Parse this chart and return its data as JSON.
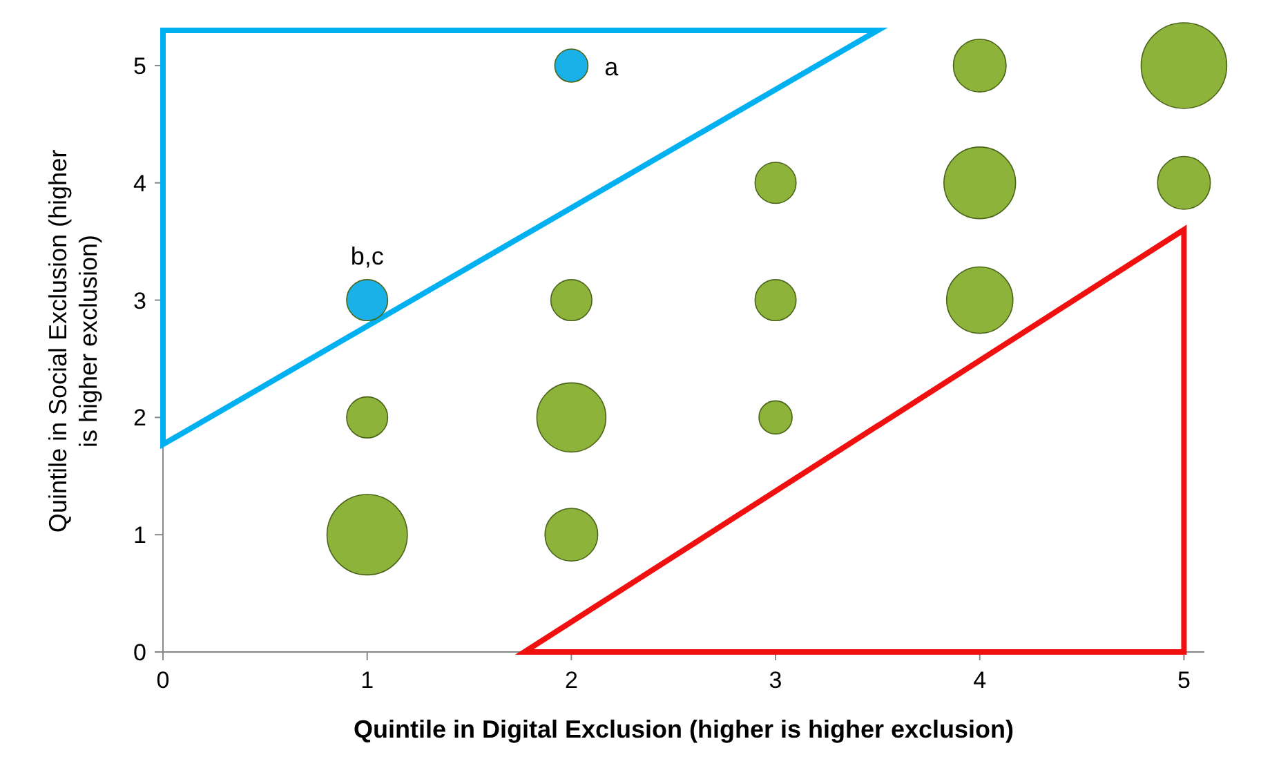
{
  "chart_data": {
    "type": "bubble",
    "xlabel": "Quintile in Digital Exclusion (higher is higher exclusion)",
    "ylabel": "Quintile in Social Exclusion (higher is higher exclusion)",
    "xlim": [
      0,
      5.1
    ],
    "ylim": [
      0,
      5.3
    ],
    "xticks": [
      0,
      1,
      2,
      3,
      4,
      5
    ],
    "yticks": [
      0,
      1,
      2,
      3,
      4,
      5
    ],
    "grid": false,
    "series": [
      {
        "color": "#8db33a",
        "x": [
          1,
          1,
          2,
          2,
          2,
          3,
          3,
          3,
          4,
          4,
          4,
          5,
          5
        ],
        "values": [
          1,
          2,
          1,
          2,
          3,
          2,
          3,
          4,
          3,
          4,
          5,
          4,
          5
        ],
        "sizes": [
          0.88,
          0.23,
          0.38,
          0.65,
          0.23,
          0.15,
          0.23,
          0.23,
          0.6,
          0.7,
          0.38,
          0.38,
          1
        ]
      },
      {
        "color": "#1ab0e8",
        "x": [
          1,
          2
        ],
        "values": [
          3,
          5
        ],
        "sizes": [
          0.23,
          0.15
        ]
      }
    ],
    "annotations": [
      {
        "text": "a",
        "x": 2,
        "y": 5
      },
      {
        "text": "b,c",
        "x": 1,
        "y": 3
      }
    ]
  }
}
